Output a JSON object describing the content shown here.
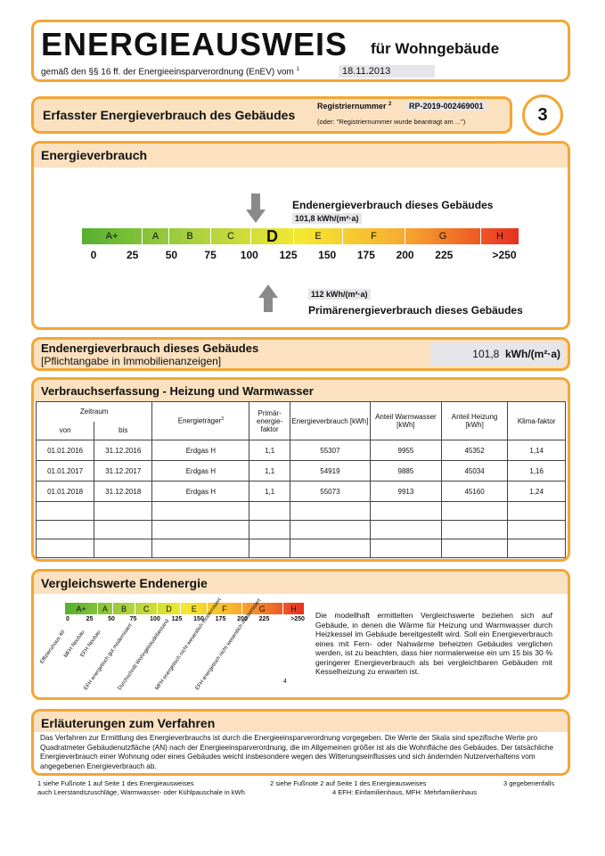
{
  "header": {
    "title": "ENERGIEAUSWEIS",
    "subtitle": "für Wohngebäude",
    "regulation": "gemäß den §§ 16 ff. der Energieeinsparverordnung (EnEV) vom",
    "footnote": "1",
    "date": "18.11.2013"
  },
  "section": {
    "title": "Erfasster Energieverbrauch des Gebäudes",
    "registration_label": "Registriernummer",
    "registration_footnote": "2",
    "registration_number": "RP-2019-002469001",
    "registration_note": "(oder: \"Registriernummer wurde beantragt am ...\")",
    "page": "3"
  },
  "consumption": {
    "title": "Energieverbrauch",
    "final_label": "Endenergieverbrauch dieses Gebäudes",
    "final_value": "101,8",
    "final_unit": "kWh/(m²·a)",
    "classes": [
      "A+",
      "A",
      "B",
      "C",
      "D",
      "E",
      "F",
      "G",
      "H"
    ],
    "scale": [
      0,
      25,
      50,
      75,
      100,
      125,
      150,
      175,
      200,
      225,
      ">250"
    ],
    "primary_value": "112",
    "primary_unit": "kWh/(m²·a)",
    "primary_label": "Primärenergieverbrauch dieses Gebäudes"
  },
  "summary": {
    "label": "Endenergieverbrauch dieses Gebäudes",
    "sublabel": "[Pflichtangabe in Immobilienanzeigen]",
    "value": "101,8",
    "unit": "kWh/(m²·a)"
  },
  "table": {
    "title": "Verbrauchserfassung - Heizung und Warmwasser",
    "period": "Zeitraum",
    "headers": [
      "von",
      "bis",
      "Energieträger",
      "Primär-energie-faktor",
      "Energieverbrauch [kWh]",
      "Anteil Warmwasser [kWh]",
      "Anteil Heizung [kWh]",
      "Klima-faktor"
    ],
    "carrier_footnote": "3",
    "rows": [
      [
        "01.01.2016",
        "31.12.2016",
        "Erdgas H",
        "1,1",
        "55307",
        "9955",
        "45352",
        "1,14"
      ],
      [
        "01.01.2017",
        "31.12.2017",
        "Erdgas H",
        "1,1",
        "54919",
        "9885",
        "45034",
        "1,16"
      ],
      [
        "01.01.2018",
        "31.12.2018",
        "Erdgas H",
        "1,1",
        "55073",
        "9913",
        "45160",
        "1,24"
      ]
    ]
  },
  "comparison": {
    "title": "Vergleichswerte Endenergie",
    "classes": [
      "A+",
      "A",
      "B",
      "C",
      "D",
      "E",
      "F",
      "G",
      "H"
    ],
    "scale": [
      0,
      25,
      50,
      75,
      100,
      125,
      150,
      175,
      200,
      225,
      ">250"
    ],
    "references": [
      "Effizienzhaus 40",
      "MFH Neubau",
      "EFH Neubau",
      "EFH energetisch gut modernisiert",
      "Durchschnitt Wohngebäudebestand",
      "MFH energetisch nicht wesentlich modernisiert",
      "EFH energetisch nicht wesentlich modernisiert"
    ],
    "footnote": "4",
    "text": "Die modellhaft ermittelten Vergleichswerte beziehen sich auf Gebäude, in denen die Wärme für Heizung und Warmwasser durch Heizkessel im Gebäude bereitgestellt wird. Soll ein Energieverbrauch eines mit Fern- oder Nahwärme beheizten Gebäudes verglichen werden, ist zu beachten, dass hier normalerweise ein um 15 bis 30 % geringerer Energieverbrauch als bei vergleichbaren Gebäuden mit Kesselheizung zu erwarten ist."
  },
  "explanation": {
    "title": "Erläuterungen zum Verfahren",
    "text": "Das Verfahren zur Ermittlung des Energieverbrauchs ist durch die Energieeinsparverordnung vorgegeben. Die Werte der Skala sind spezifische Werte pro Quadratmeter Gebäudenutzfläche (AN) nach der Energieeinsparverordnung, die im Allgemeinen größer ist als die Wohnfläche des Gebäudes. Der tatsächliche Energieverbrauch einer Wohnung oder eines Gebäudes weicht insbesondere wegen des Witterungseinflusses und sich ändernden Nutzerverhaltens vom angegebenen Energieverbrauch ab."
  },
  "footnotes": [
    "1 siehe Fußnote 1 auf Seite 1 des Energieausweises",
    "2 siehe Fußnote 2 auf Seite 1 des Energieausweises",
    "3 gegebenenfalls",
    "auch Leerstandszuschläge, Warmwasser- oder Kühlpauschale in kWh",
    "4 EFH: Einfamilienhaus, MFH: Mehrfamilienhaus"
  ]
}
